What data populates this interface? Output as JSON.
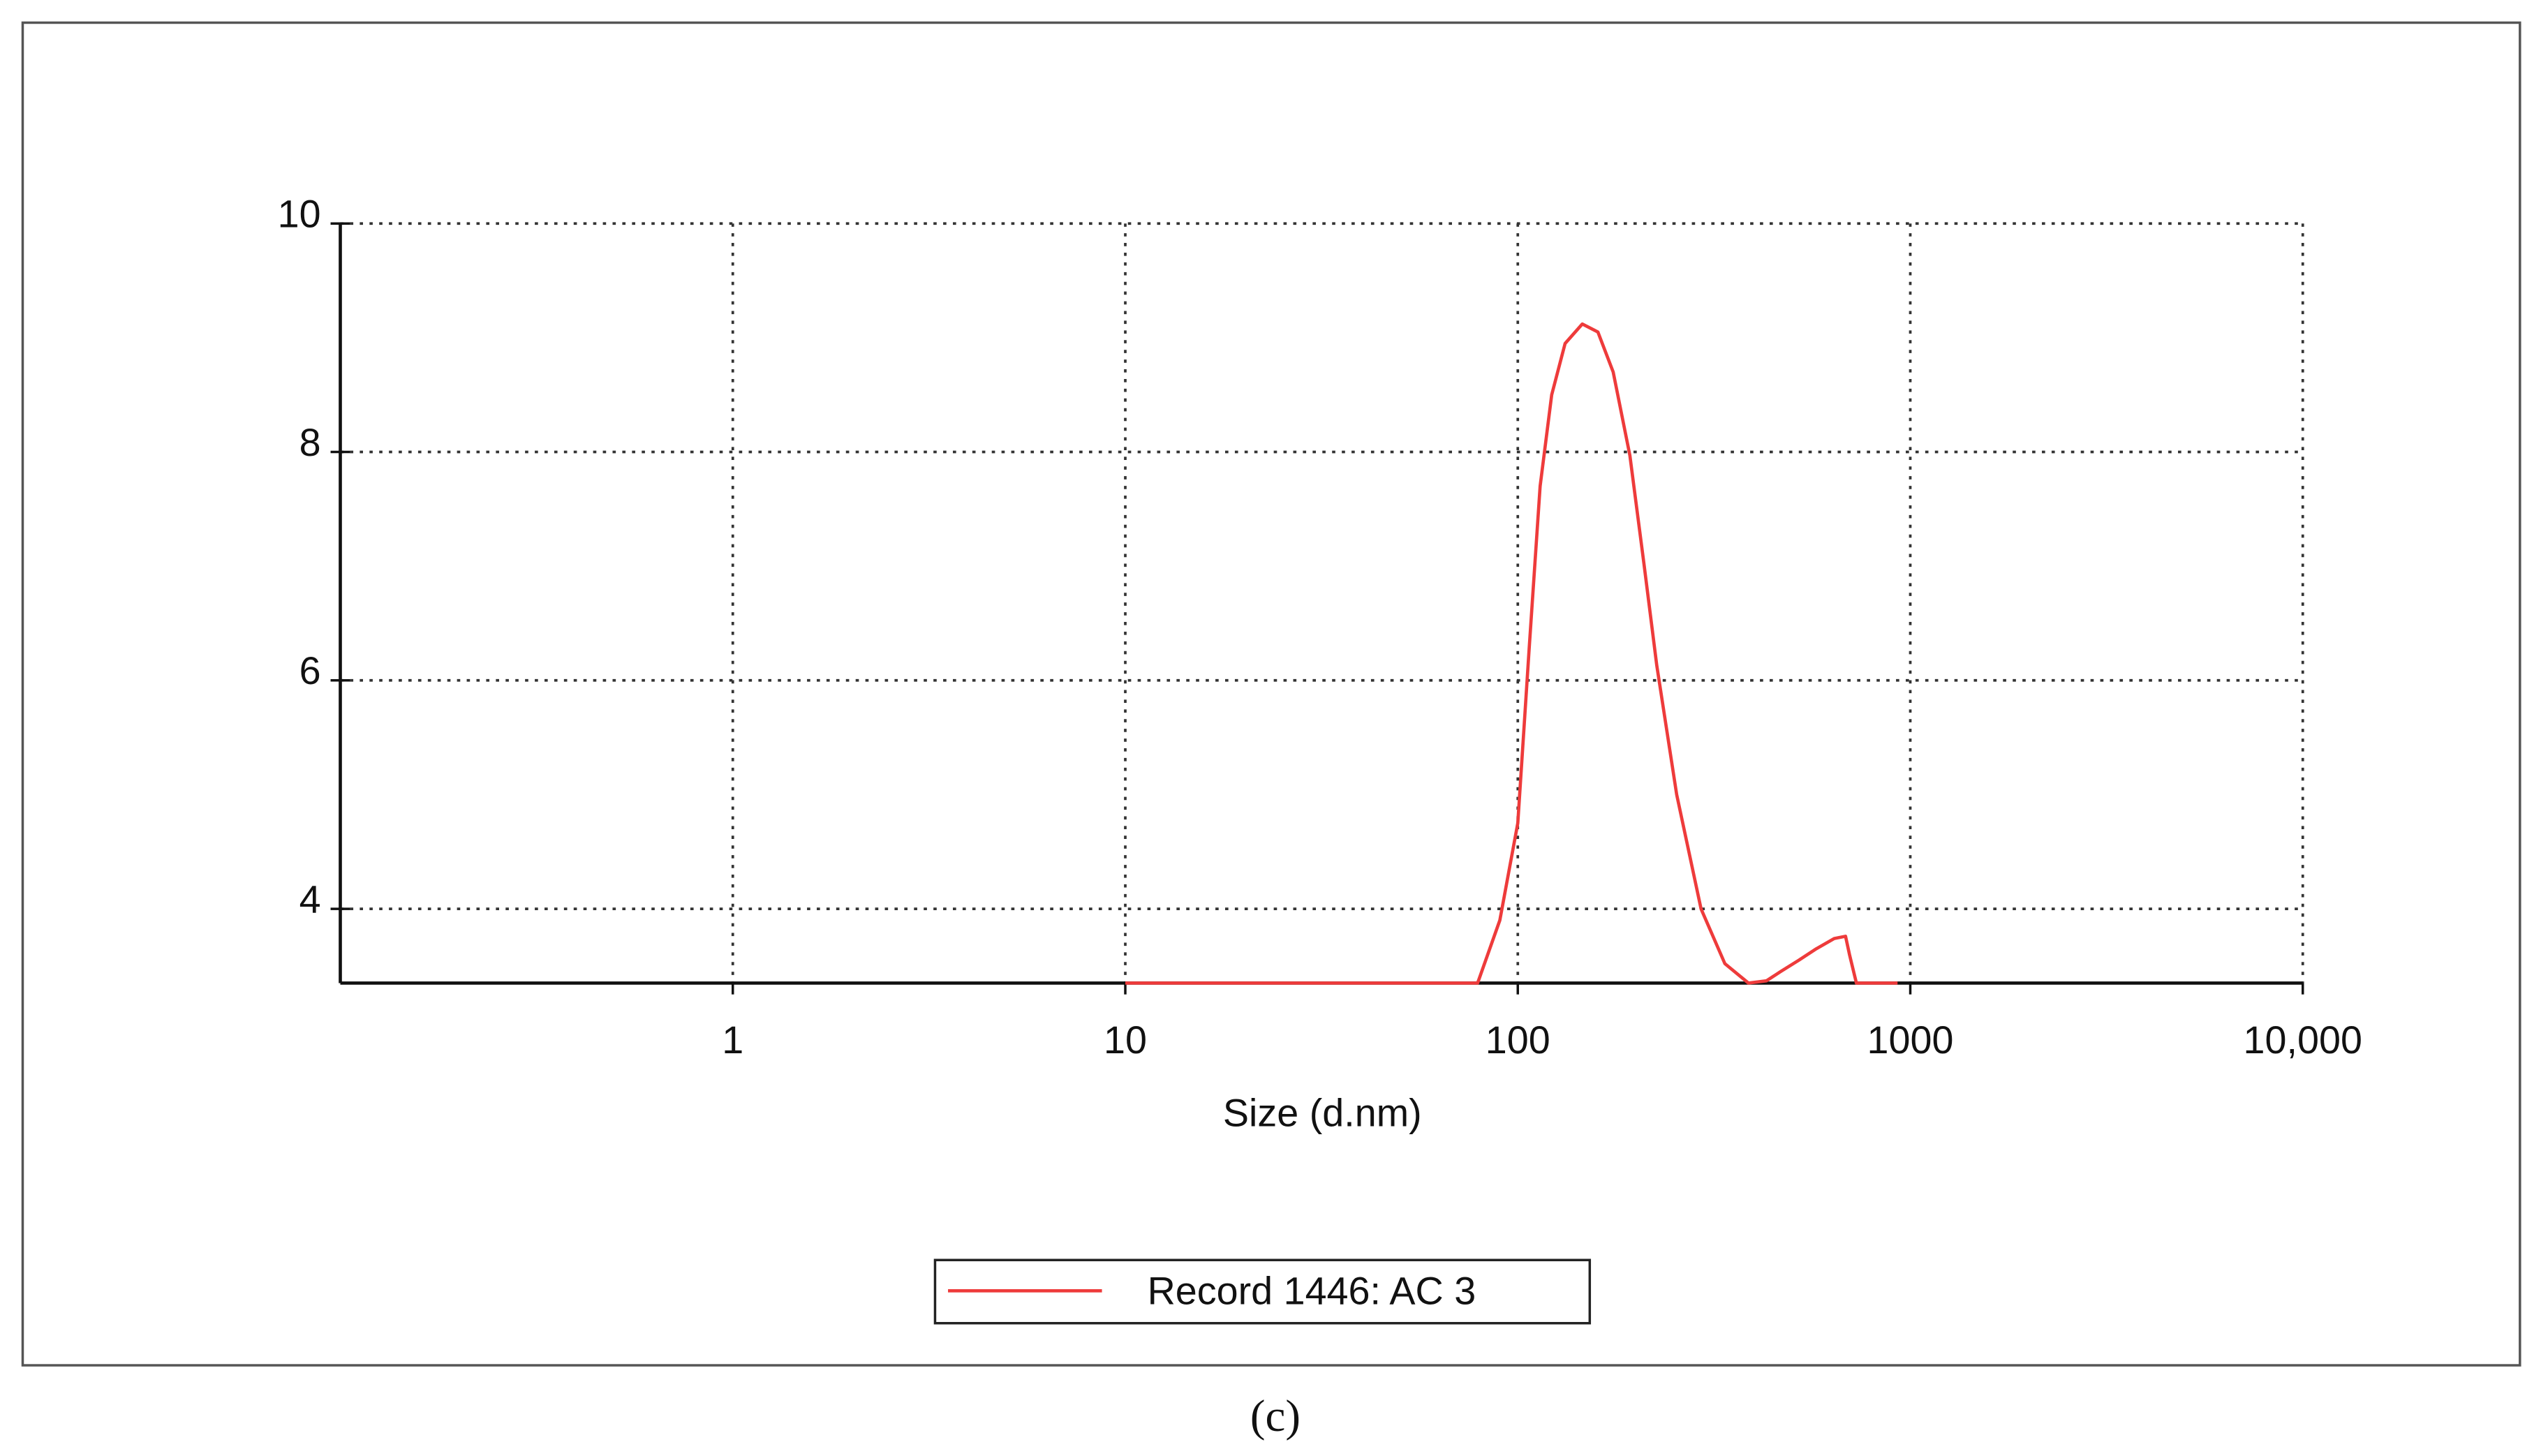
{
  "chart_data": {
    "type": "line",
    "x_label": "Size (d.nm)",
    "caption": "(c)",
    "x": [
      10,
      20,
      40,
      60,
      79,
      90,
      100,
      107,
      114,
      122,
      132,
      146,
      160,
      175,
      193,
      210,
      226,
      254,
      293,
      337,
      387,
      430,
      467,
      520,
      576,
      640,
      684,
      700,
      729,
      800,
      928
    ],
    "series": [
      {
        "name": "Record 1446: AC 3",
        "color": "#ee3b3b",
        "values": [
          3.35,
          3.35,
          3.35,
          3.35,
          3.35,
          3.9,
          4.75,
          6.3,
          7.7,
          8.5,
          8.95,
          9.12,
          9.05,
          8.7,
          7.97,
          7.0,
          6.13,
          5.0,
          4.0,
          3.52,
          3.35,
          3.37,
          3.45,
          3.55,
          3.65,
          3.74,
          3.76,
          3.6,
          3.35,
          3.35,
          3.35
        ]
      }
    ],
    "xlim": [
      0.1,
      10000
    ],
    "xticks": [
      1,
      10,
      100,
      1000,
      {
        "value": 10000,
        "label": "10,000"
      }
    ],
    "x_log": true,
    "ylim": [
      3.35,
      10
    ],
    "yticks": [
      4,
      6,
      8,
      10
    ],
    "grid": true,
    "legend": "bottom"
  }
}
